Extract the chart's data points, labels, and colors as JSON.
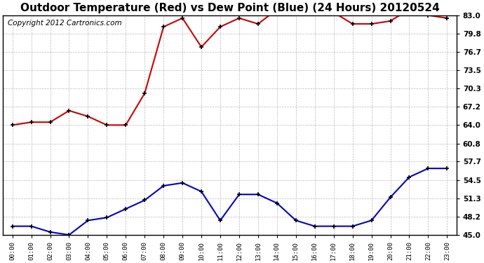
{
  "title": "Outdoor Temperature (Red) vs Dew Point (Blue) (24 Hours) 20120524",
  "copyright": "Copyright 2012 Cartronics.com",
  "x_labels": [
    "00:00",
    "01:00",
    "02:00",
    "03:00",
    "04:00",
    "05:00",
    "06:00",
    "07:00",
    "08:00",
    "09:00",
    "10:00",
    "11:00",
    "12:00",
    "13:00",
    "14:00",
    "15:00",
    "16:00",
    "17:00",
    "18:00",
    "19:00",
    "20:00",
    "21:00",
    "22:00",
    "23:00"
  ],
  "temp_red": [
    64.0,
    64.5,
    64.5,
    66.5,
    65.5,
    64.0,
    64.0,
    69.5,
    81.0,
    82.5,
    77.5,
    81.0,
    82.5,
    81.5,
    84.0,
    84.0,
    83.5,
    83.5,
    81.5,
    81.5,
    82.0,
    84.0,
    83.0,
    82.5
  ],
  "dew_blue": [
    46.5,
    46.5,
    45.5,
    45.0,
    47.5,
    48.0,
    49.5,
    51.0,
    53.5,
    54.0,
    52.5,
    47.5,
    52.0,
    52.0,
    50.5,
    47.5,
    46.5,
    46.5,
    46.5,
    47.5,
    51.5,
    55.0,
    56.5,
    56.5
  ],
  "ylim": [
    45.0,
    83.0
  ],
  "yticks": [
    45.0,
    48.2,
    51.3,
    54.5,
    57.7,
    60.8,
    64.0,
    67.2,
    70.3,
    73.5,
    76.7,
    79.8,
    83.0
  ],
  "background_color": "#ffffff",
  "plot_bg_color": "#ffffff",
  "grid_color": "#bbbbbb",
  "red_color": "#cc0000",
  "blue_color": "#0000cc",
  "title_fontsize": 11,
  "copyright_fontsize": 7.5
}
